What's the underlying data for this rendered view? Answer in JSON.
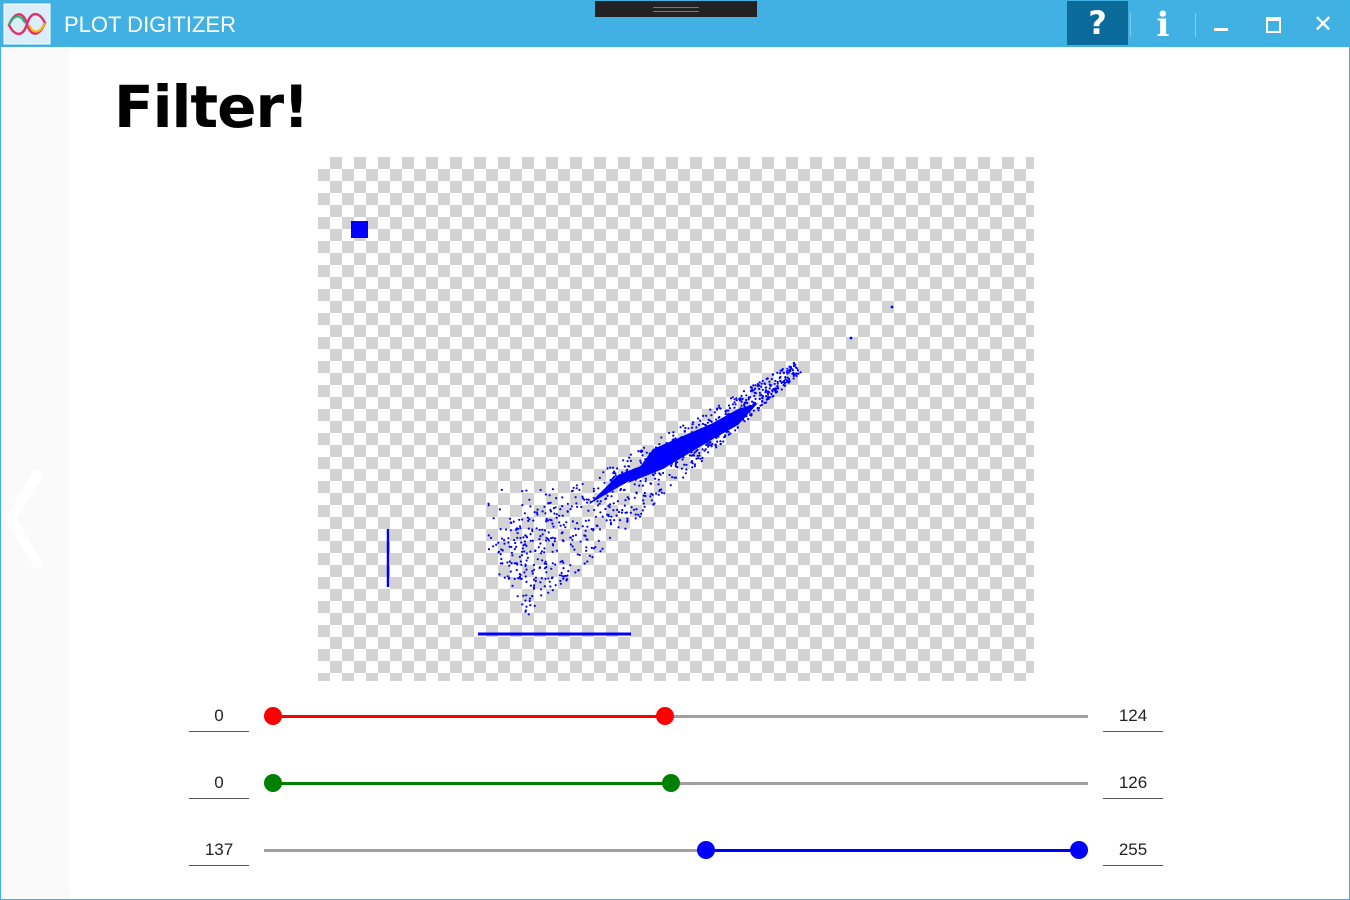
{
  "window": {
    "title": "PLOT DIGITIZER"
  },
  "titlebar": {
    "help_label": "?",
    "info_label": "i",
    "close_label": "✕"
  },
  "page": {
    "heading": "Filter!"
  },
  "filters": [
    {
      "name": "red",
      "color": "#ff0000",
      "min": 0,
      "max": 124,
      "range_max": 255
    },
    {
      "name": "green",
      "color": "#008000",
      "min": 0,
      "max": 126,
      "range_max": 255
    },
    {
      "name": "blue",
      "color": "#0000ff",
      "min": 137,
      "max": 255,
      "range_max": 255
    }
  ],
  "canvas": {
    "point_color": "#0000ff"
  }
}
